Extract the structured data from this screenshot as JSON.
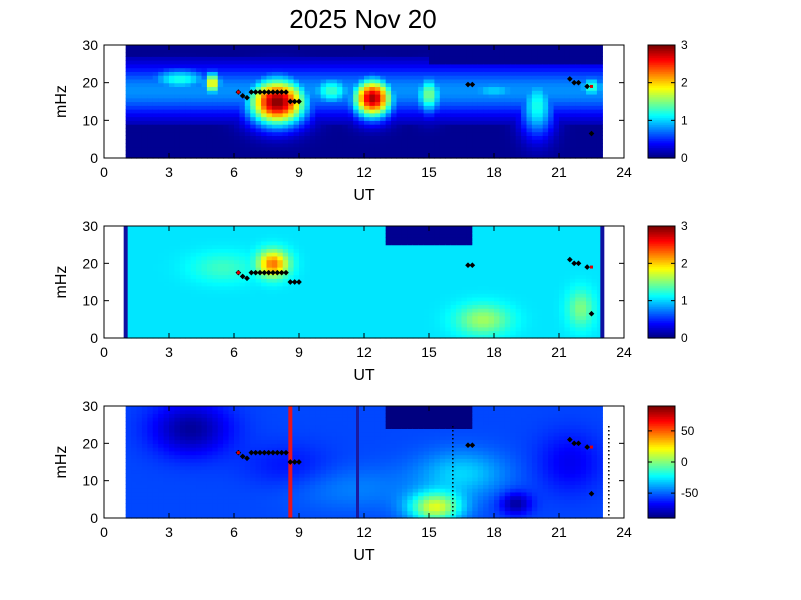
{
  "figure": {
    "title": "2025 Nov 20"
  },
  "chart_data": [
    {
      "type": "heatmap",
      "xlabel": "UT",
      "ylabel": "mHz",
      "xlim": [
        0,
        24
      ],
      "ylim": [
        0,
        30
      ],
      "xticks": [
        "0",
        "3",
        "6",
        "9",
        "12",
        "15",
        "18",
        "21",
        "24"
      ],
      "yticks": [
        "0",
        "10",
        "20",
        "30"
      ],
      "data_start": 1,
      "data_end": 23,
      "colorbar": {
        "min": 0,
        "max": 3,
        "ticks": [
          "0",
          "1",
          "2",
          "3"
        ]
      },
      "blobs": [
        {
          "x": 8.0,
          "y": 15,
          "rx": 1.3,
          "ry": 6,
          "v": 3.0
        },
        {
          "x": 12.4,
          "y": 16,
          "rx": 0.9,
          "ry": 5,
          "v": 2.9
        },
        {
          "x": 5.0,
          "y": 20,
          "rx": 0.4,
          "ry": 3,
          "v": 2.0
        },
        {
          "x": 15.0,
          "y": 17,
          "rx": 0.6,
          "ry": 5,
          "v": 1.5
        },
        {
          "x": 10.5,
          "y": 18,
          "rx": 1.0,
          "ry": 4,
          "v": 1.3
        },
        {
          "x": 3.5,
          "y": 21,
          "rx": 1.5,
          "ry": 3,
          "v": 1.2
        },
        {
          "x": 20.0,
          "y": 14,
          "rx": 0.8,
          "ry": 8,
          "v": 1.2
        },
        {
          "x": 18.0,
          "y": 18,
          "rx": 1.5,
          "ry": 3,
          "v": 1.0
        },
        {
          "x": 22.5,
          "y": 19,
          "rx": 0.6,
          "ry": 3,
          "v": 1.3
        }
      ],
      "background": 0.05,
      "base_band": {
        "center": 18,
        "half": 5,
        "v": 0.8
      },
      "mask": [
        {
          "x0": 15.0,
          "x1": 23.0,
          "y0": 25,
          "y1": 30,
          "v": 0.05
        }
      ]
    },
    {
      "type": "heatmap",
      "xlabel": "UT",
      "ylabel": "mHz",
      "xlim": [
        0,
        24
      ],
      "ylim": [
        0,
        30
      ],
      "xticks": [
        "0",
        "3",
        "6",
        "9",
        "12",
        "15",
        "18",
        "21",
        "24"
      ],
      "yticks": [
        "0",
        "10",
        "20",
        "30"
      ],
      "data_start": 1,
      "data_end": 23,
      "colorbar": {
        "min": 0,
        "max": 3,
        "ticks": [
          "0",
          "1",
          "2",
          "3"
        ]
      },
      "blobs": [
        {
          "x": 7.8,
          "y": 20,
          "rx": 0.7,
          "ry": 3.5,
          "v": 2.3
        },
        {
          "x": 5.5,
          "y": 19,
          "rx": 1.5,
          "ry": 4,
          "v": 1.3
        },
        {
          "x": 15.5,
          "y": 14,
          "rx": 1.0,
          "ry": 5,
          "v": 0.7
        },
        {
          "x": 17.5,
          "y": 5,
          "rx": 1.2,
          "ry": 4,
          "v": 1.6
        },
        {
          "x": 22.0,
          "y": 8,
          "rx": 0.6,
          "ry": 5,
          "v": 1.5
        },
        {
          "x": 10.0,
          "y": 12,
          "rx": 2.0,
          "ry": 6,
          "v": 1.0
        },
        {
          "x": 19.5,
          "y": 22,
          "rx": 1.5,
          "ry": 4,
          "v": 1.0
        }
      ],
      "background": 1.05,
      "base_band": null,
      "mask": [
        {
          "x0": 13.0,
          "x1": 17.0,
          "y0": 25,
          "y1": 30,
          "v": 0.05
        }
      ],
      "edge_lines": [
        1.0,
        23.0
      ]
    },
    {
      "type": "heatmap",
      "xlabel": "UT",
      "ylabel": "mHz",
      "xlim": [
        0,
        24
      ],
      "ylim": [
        0,
        30
      ],
      "xticks": [
        "0",
        "3",
        "6",
        "9",
        "12",
        "15",
        "18",
        "21",
        "24"
      ],
      "yticks": [
        "0",
        "10",
        "20",
        "30"
      ],
      "data_start": 1,
      "data_end": 23,
      "colorbar": {
        "min": -90,
        "max": 90,
        "ticks": [
          "50",
          "0",
          "-50"
        ],
        "tick_values": [
          50,
          0,
          -50
        ]
      },
      "blobs": [
        {
          "x": 4.0,
          "y": 24,
          "rx": 1.8,
          "ry": 7,
          "v": -85
        },
        {
          "x": 19.0,
          "y": 4,
          "rx": 0.7,
          "ry": 3,
          "v": -85
        },
        {
          "x": 15.3,
          "y": 3,
          "rx": 1.2,
          "ry": 4,
          "v": 15
        },
        {
          "x": 11.5,
          "y": 8,
          "rx": 3.0,
          "ry": 6,
          "v": -45
        },
        {
          "x": 8.5,
          "y": 14,
          "rx": 2.0,
          "ry": 6,
          "v": -65
        },
        {
          "x": 21.5,
          "y": 15,
          "rx": 1.5,
          "ry": 8,
          "v": -70
        },
        {
          "x": 16.5,
          "y": 12,
          "rx": 2.0,
          "ry": 6,
          "v": -30
        }
      ],
      "background": -55,
      "base_band": null,
      "mask": [
        {
          "x0": 13.0,
          "x1": 17.0,
          "y0": 24,
          "y1": 30,
          "v": -90
        }
      ],
      "edge_lines": [],
      "red_line_x": 8.6,
      "blue_line_x": 11.7,
      "dotted_x": [
        16.1,
        23.3
      ]
    }
  ],
  "markers": {
    "black": [
      [
        6.2,
        17.5
      ],
      [
        6.4,
        16.5
      ],
      [
        6.6,
        16
      ],
      [
        6.8,
        17.5
      ],
      [
        7.0,
        17.5
      ],
      [
        7.2,
        17.5
      ],
      [
        7.4,
        17.5
      ],
      [
        7.6,
        17.5
      ],
      [
        7.8,
        17.5
      ],
      [
        8.0,
        17.5
      ],
      [
        8.2,
        17.5
      ],
      [
        8.4,
        17.5
      ],
      [
        8.6,
        15
      ],
      [
        8.8,
        15
      ],
      [
        9.0,
        15
      ],
      [
        16.8,
        19.5
      ],
      [
        17.0,
        19.5
      ],
      [
        21.5,
        21
      ],
      [
        21.7,
        20
      ],
      [
        21.9,
        20
      ],
      [
        22.3,
        19
      ],
      [
        22.5,
        6.5
      ]
    ],
    "red": [
      [
        6.2,
        17.5
      ],
      [
        22.5,
        19
      ]
    ]
  }
}
